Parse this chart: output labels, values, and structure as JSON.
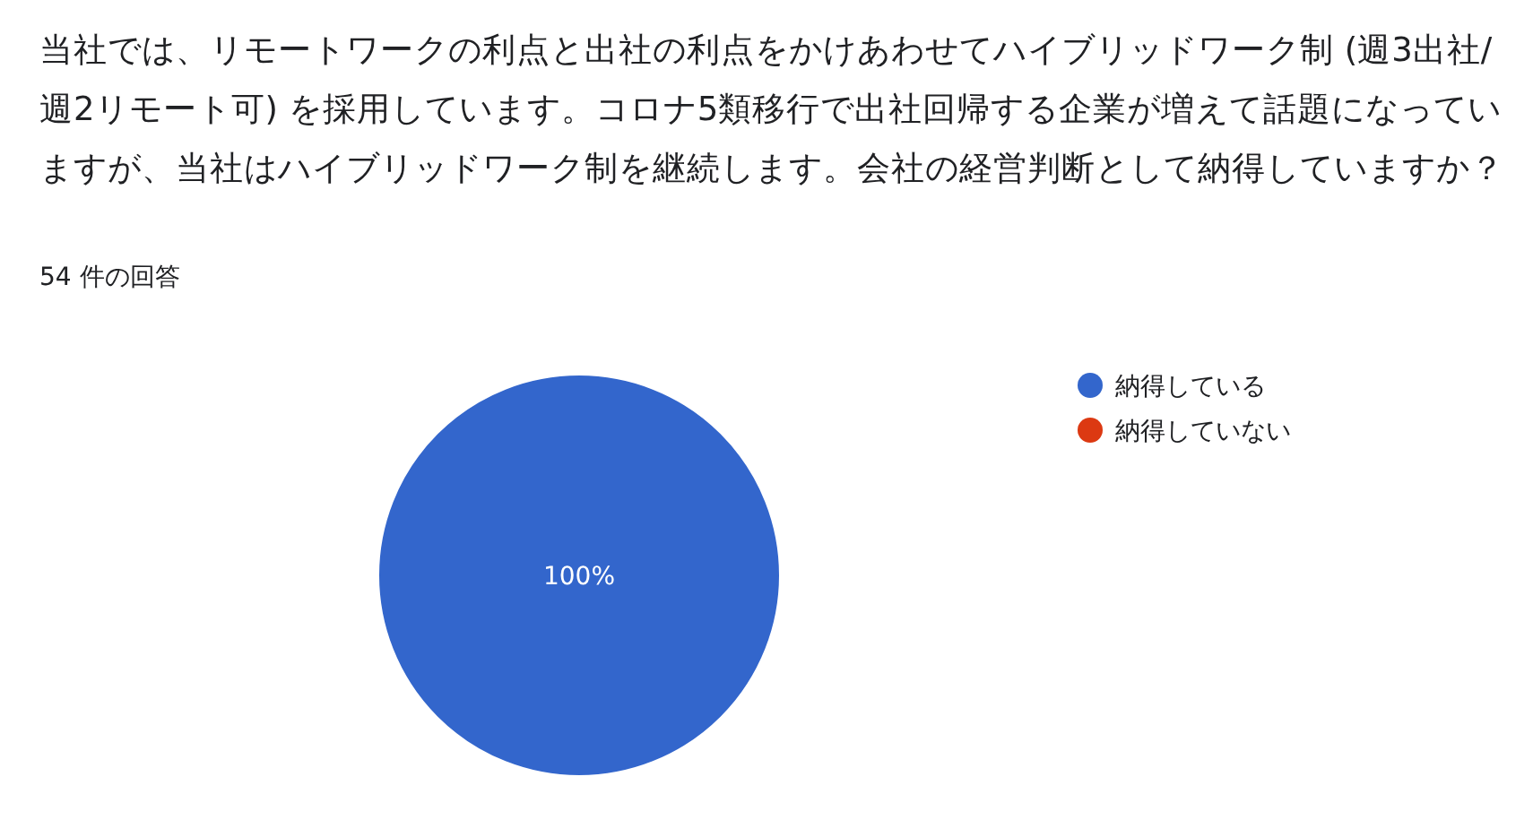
{
  "chart_data": {
    "type": "pie",
    "title": "当社では、リモートワークの利点と出社の利点をかけあわせてハイブリッドワーク制 (週3出社/週2リモート可) を採用しています。コロナ5類移行で出社回帰する企業が増えて話題になっていますが、当社はハイブリッドワーク制を継続します。会社の経営判断として納得していますか？",
    "subtitle": "54 件の回答",
    "categories": [
      "納得している",
      "納得していない"
    ],
    "values": [
      100,
      0
    ],
    "colors": [
      "#3366cc",
      "#dc3912"
    ],
    "value_labels": [
      "100%",
      null
    ],
    "legend": "right"
  }
}
